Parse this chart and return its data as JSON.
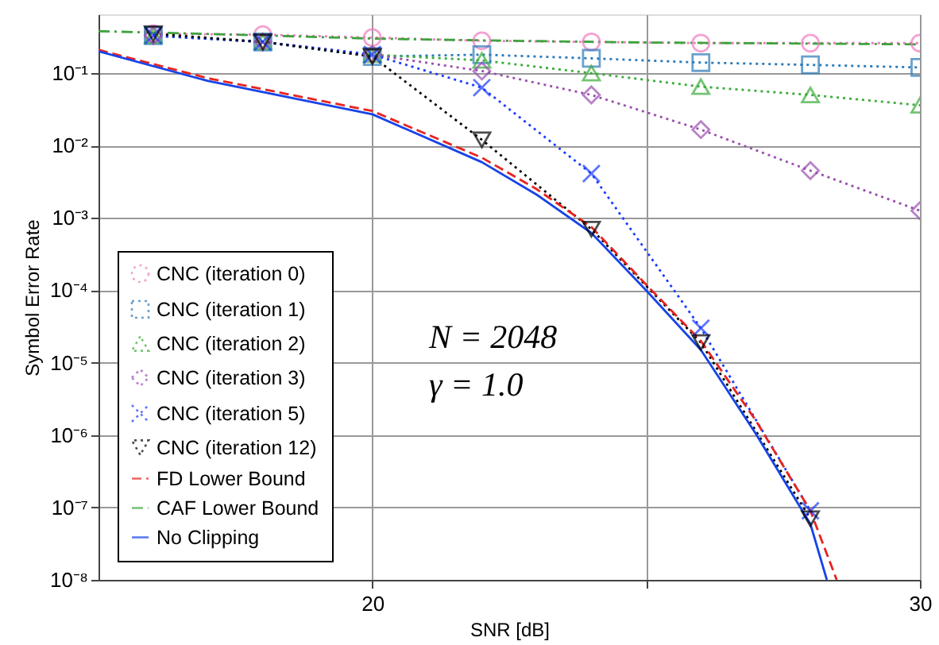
{
  "chart_data": {
    "type": "line",
    "xlabel": "SNR [dB]",
    "ylabel": "Symbol Error Rate",
    "xlim": [
      15,
      30
    ],
    "xticks": [
      20,
      {
        "value": 25,
        "label": null
      },
      30
    ],
    "ylim": [
      1e-08,
      0.65
    ],
    "log": true,
    "yticks": [
      {
        "value": 1e-08,
        "label": "10⁻⁸"
      },
      {
        "value": 1e-07,
        "label": "10⁻⁷"
      },
      {
        "value": 1e-06,
        "label": "10⁻⁶"
      },
      {
        "value": 1e-05,
        "label": "10⁻⁵"
      },
      {
        "value": 0.0001,
        "label": "10⁻⁴"
      },
      {
        "value": 0.001,
        "label": "10⁻³"
      },
      {
        "value": 0.01,
        "label": "10⁻²"
      },
      {
        "value": 0.1,
        "label": "10⁻¹"
      }
    ],
    "grid": true,
    "legend": "bottom left",
    "annotations": [
      "N = 2048",
      "γ = 1.0"
    ],
    "series": [
      {
        "name": "CNC (iteration 0)",
        "color": "#f07cc0",
        "marker": "circle",
        "line_style": "dotted",
        "x": [
          16,
          18,
          20,
          22,
          24,
          26,
          28,
          30
        ],
        "values": [
          0.35,
          0.34,
          0.31,
          0.28,
          0.27,
          0.26,
          0.26,
          0.26
        ]
      },
      {
        "name": "CNC (iteration 1)",
        "color": "#2a7ab9",
        "marker": "square",
        "line_style": "dotted",
        "x": [
          16,
          18,
          20,
          22,
          24,
          26,
          28,
          30
        ],
        "values": [
          0.33,
          0.27,
          0.17,
          0.18,
          0.16,
          0.14,
          0.13,
          0.12
        ]
      },
      {
        "name": "CNC (iteration 2)",
        "color": "#3aac3a",
        "marker": "triangle",
        "line_style": "dotted",
        "x": [
          16,
          18,
          20,
          22,
          24,
          26,
          28,
          30
        ],
        "values": [
          0.33,
          0.27,
          0.18,
          0.15,
          0.1,
          0.065,
          0.05,
          0.036
        ]
      },
      {
        "name": "CNC (iteration 3)",
        "color": "#9b4fb0",
        "marker": "diamond",
        "line_style": "dotted",
        "x": [
          16,
          18,
          20,
          22,
          24,
          26,
          28,
          30
        ],
        "values": [
          0.33,
          0.27,
          0.18,
          0.107,
          0.05,
          0.0166,
          0.0045,
          0.00126
        ]
      },
      {
        "name": "CNC (iteration 5)",
        "color": "#1a3cff",
        "marker": "cross",
        "line_style": "dotted",
        "x": [
          16,
          18,
          20,
          22,
          24,
          26,
          28
        ],
        "values": [
          0.33,
          0.27,
          0.18,
          0.063,
          0.0041,
          3e-05,
          9e-08
        ]
      },
      {
        "name": "CNC (iteration 12)",
        "color": "#000000",
        "marker": "triangle_down",
        "line_style": "dotted",
        "x": [
          16,
          18,
          20,
          22,
          24,
          26,
          28
        ],
        "values": [
          0.35,
          0.27,
          0.17,
          0.012,
          0.0007,
          1.9e-05,
          7e-08
        ]
      },
      {
        "name": "FD Lower Bound",
        "color": "#e8231f",
        "marker": "none",
        "line_style": "dashed",
        "x": [
          15,
          17,
          20,
          22,
          23,
          24,
          25,
          26,
          27,
          28,
          28.48
        ],
        "values": [
          0.21,
          0.085,
          0.03,
          0.0068,
          0.0025,
          0.00075,
          0.00012,
          2e-05,
          1.6e-06,
          9e-08,
          1e-08
        ]
      },
      {
        "name": "CAF Lower Bound",
        "color": "#3ea33e",
        "marker": "none",
        "line_style": "dashdot",
        "x": [
          15,
          17.5,
          20,
          22.5,
          25,
          30
        ],
        "values": [
          0.38,
          0.34,
          0.3,
          0.28,
          0.265,
          0.25
        ]
      },
      {
        "name": "No Clipping",
        "color": "#1744e8",
        "marker": "none",
        "line_style": "solid",
        "x": [
          15,
          17,
          20,
          22,
          23,
          24,
          25,
          26,
          27,
          28,
          28.3
        ],
        "values": [
          0.2,
          0.078,
          0.027,
          0.0059,
          0.0021,
          0.00062,
          0.0001,
          1.5e-05,
          1.05e-06,
          5.9e-08,
          1e-08
        ]
      }
    ]
  }
}
